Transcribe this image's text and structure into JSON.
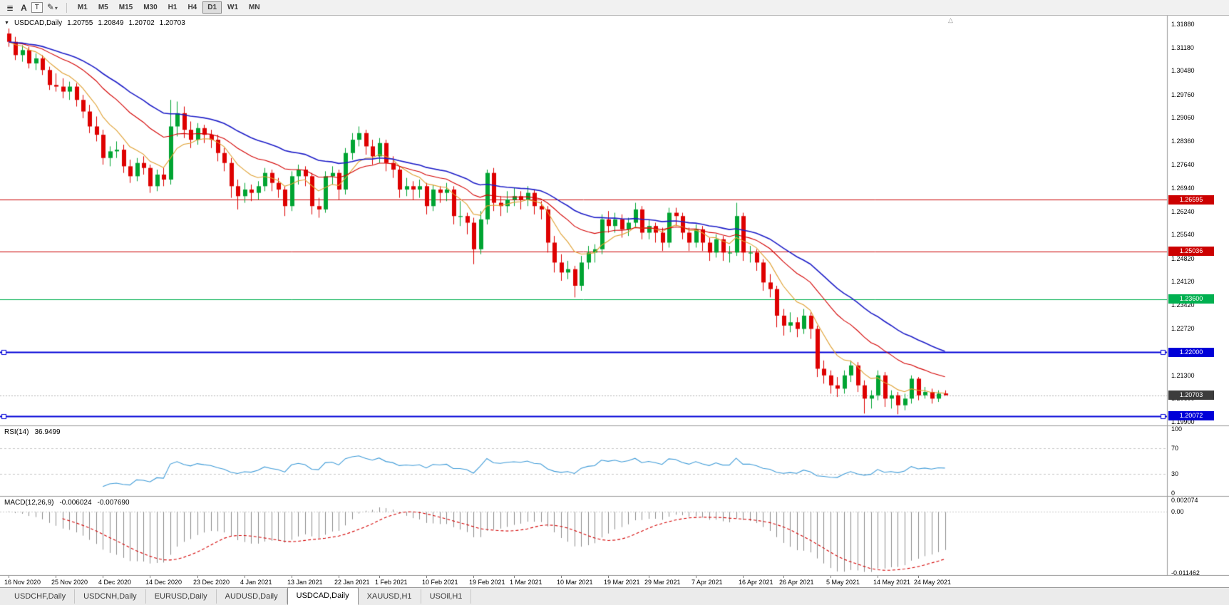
{
  "toolbar": {
    "menu_icon": "≣",
    "a_label": "A",
    "t_label": "T",
    "draw_icon": "✎",
    "chevron_icon": "▾",
    "timeframes": [
      "M1",
      "M5",
      "M15",
      "M30",
      "H1",
      "H4",
      "D1",
      "W1",
      "MN"
    ],
    "active_timeframe": "D1"
  },
  "chart_header": {
    "dropdown_icon": "▼",
    "symbol_label": "USDCAD,Daily",
    "open": "1.20755",
    "high": "1.20849",
    "low": "1.20702",
    "close": "1.20703"
  },
  "misc": {
    "shift_marker_icon": "△"
  },
  "chart_data": {
    "type": "candlestick",
    "symbol": "USDCAD",
    "timeframe": "Daily",
    "ylim": [
      1.199,
      1.3215
    ],
    "price_axis_labels": [
      "1.31880",
      "1.31180",
      "1.30480",
      "1.29760",
      "1.29060",
      "1.28360",
      "1.27640",
      "1.26940",
      "1.26240",
      "1.25540",
      "1.24820",
      "1.24120",
      "1.23420",
      "1.22720",
      "1.22000",
      "1.21300",
      "1.20600",
      "1.19900"
    ],
    "date_ticks": [
      {
        "i": 0,
        "label": "16 Nov 2020"
      },
      {
        "i": 7,
        "label": "25 Nov 2020"
      },
      {
        "i": 14,
        "label": "4 Dec 2020"
      },
      {
        "i": 21,
        "label": "14 Dec 2020"
      },
      {
        "i": 28,
        "label": "23 Dec 2020"
      },
      {
        "i": 35,
        "label": "4 Jan 2021"
      },
      {
        "i": 42,
        "label": "13 Jan 2021"
      },
      {
        "i": 49,
        "label": "22 Jan 2021"
      },
      {
        "i": 55,
        "label": "1 Feb 2021"
      },
      {
        "i": 62,
        "label": "10 Feb 2021"
      },
      {
        "i": 69,
        "label": "19 Feb 2021"
      },
      {
        "i": 75,
        "label": "1 Mar 2021"
      },
      {
        "i": 82,
        "label": "10 Mar 2021"
      },
      {
        "i": 89,
        "label": "19 Mar 2021"
      },
      {
        "i": 95,
        "label": "29 Mar 2021"
      },
      {
        "i": 102,
        "label": "7 Apr 2021"
      },
      {
        "i": 109,
        "label": "16 Apr 2021"
      },
      {
        "i": 115,
        "label": "26 Apr 2021"
      },
      {
        "i": 122,
        "label": "5 May 2021"
      },
      {
        "i": 129,
        "label": "14 May 2021"
      },
      {
        "i": 135,
        "label": "24 May 2021"
      }
    ],
    "candles": [
      [
        1.316,
        1.3175,
        1.312,
        1.3135
      ],
      [
        1.3135,
        1.315,
        1.308,
        1.3095
      ],
      [
        1.3095,
        1.3125,
        1.3075,
        1.311
      ],
      [
        1.311,
        1.312,
        1.3055,
        1.307
      ],
      [
        1.307,
        1.31,
        1.305,
        1.3085
      ],
      [
        1.3085,
        1.3095,
        1.3035,
        1.305
      ],
      [
        1.305,
        1.306,
        1.299,
        1.3005
      ],
      [
        1.3005,
        1.304,
        1.2985,
        1.3
      ],
      [
        1.3,
        1.3025,
        1.2965,
        1.2985
      ],
      [
        1.2985,
        1.3015,
        1.296,
        1.3
      ],
      [
        1.3,
        1.301,
        1.294,
        1.296
      ],
      [
        1.296,
        1.2975,
        1.2905,
        1.2925
      ],
      [
        1.2925,
        1.2945,
        1.286,
        1.288
      ],
      [
        1.288,
        1.291,
        1.2835,
        1.2855
      ],
      [
        1.2855,
        1.287,
        1.2765,
        1.2785
      ],
      [
        1.2785,
        1.282,
        1.276,
        1.2805
      ],
      [
        1.2805,
        1.2835,
        1.2785,
        1.281
      ],
      [
        1.281,
        1.2825,
        1.274,
        1.276
      ],
      [
        1.276,
        1.278,
        1.271,
        1.273
      ],
      [
        1.273,
        1.2785,
        1.2715,
        1.277
      ],
      [
        1.277,
        1.279,
        1.2735,
        1.2755
      ],
      [
        1.2755,
        1.2765,
        1.268,
        1.27
      ],
      [
        1.27,
        1.275,
        1.2685,
        1.2735
      ],
      [
        1.2735,
        1.2755,
        1.27,
        1.272
      ],
      [
        1.272,
        1.296,
        1.2705,
        1.288
      ],
      [
        1.288,
        1.2955,
        1.285,
        1.292
      ],
      [
        1.292,
        1.294,
        1.2845,
        1.287
      ],
      [
        1.287,
        1.2895,
        1.2815,
        1.284
      ],
      [
        1.284,
        1.289,
        1.2825,
        1.2875
      ],
      [
        1.2875,
        1.2885,
        1.283,
        1.2855
      ],
      [
        1.2855,
        1.287,
        1.2815,
        1.284
      ],
      [
        1.284,
        1.2855,
        1.2775,
        1.28
      ],
      [
        1.28,
        1.2815,
        1.2745,
        1.277
      ],
      [
        1.277,
        1.2785,
        1.2665,
        1.27
      ],
      [
        1.27,
        1.272,
        1.263,
        1.267
      ],
      [
        1.267,
        1.271,
        1.265,
        1.269
      ],
      [
        1.269,
        1.2705,
        1.2655,
        1.268
      ],
      [
        1.268,
        1.2715,
        1.266,
        1.27
      ],
      [
        1.27,
        1.2755,
        1.2685,
        1.274
      ],
      [
        1.274,
        1.275,
        1.2685,
        1.271
      ],
      [
        1.271,
        1.2725,
        1.2665,
        1.269
      ],
      [
        1.269,
        1.27,
        1.261,
        1.264
      ],
      [
        1.264,
        1.2745,
        1.2625,
        1.273
      ],
      [
        1.273,
        1.2765,
        1.2705,
        1.275
      ],
      [
        1.275,
        1.276,
        1.27,
        1.273
      ],
      [
        1.273,
        1.274,
        1.2615,
        1.264
      ],
      [
        1.264,
        1.2665,
        1.2605,
        1.263
      ],
      [
        1.263,
        1.2745,
        1.262,
        1.273
      ],
      [
        1.273,
        1.276,
        1.2705,
        1.274
      ],
      [
        1.274,
        1.275,
        1.266,
        1.269
      ],
      [
        1.269,
        1.2815,
        1.2675,
        1.28
      ],
      [
        1.28,
        1.286,
        1.278,
        1.284
      ],
      [
        1.284,
        1.288,
        1.282,
        1.286
      ],
      [
        1.286,
        1.287,
        1.2795,
        1.282
      ],
      [
        1.282,
        1.284,
        1.2765,
        1.279
      ],
      [
        1.279,
        1.2845,
        1.277,
        1.283
      ],
      [
        1.283,
        1.284,
        1.2745,
        1.277
      ],
      [
        1.277,
        1.279,
        1.2725,
        1.275
      ],
      [
        1.275,
        1.276,
        1.2665,
        1.269
      ],
      [
        1.269,
        1.2725,
        1.267,
        1.27
      ],
      [
        1.27,
        1.2715,
        1.266,
        1.269
      ],
      [
        1.269,
        1.272,
        1.2665,
        1.27
      ],
      [
        1.27,
        1.271,
        1.2615,
        1.264
      ],
      [
        1.264,
        1.2705,
        1.2625,
        1.269
      ],
      [
        1.269,
        1.27,
        1.265,
        1.268
      ],
      [
        1.268,
        1.271,
        1.2655,
        1.269
      ],
      [
        1.269,
        1.27,
        1.2585,
        1.261
      ],
      [
        1.261,
        1.2655,
        1.258,
        1.261
      ],
      [
        1.261,
        1.262,
        1.2555,
        1.259
      ],
      [
        1.259,
        1.2605,
        1.2465,
        1.251
      ],
      [
        1.251,
        1.2625,
        1.2495,
        1.26
      ],
      [
        1.26,
        1.275,
        1.2585,
        1.274
      ],
      [
        1.274,
        1.2755,
        1.2625,
        1.265
      ],
      [
        1.265,
        1.267,
        1.261,
        1.264
      ],
      [
        1.264,
        1.2685,
        1.262,
        1.266
      ],
      [
        1.266,
        1.2695,
        1.264,
        1.267
      ],
      [
        1.267,
        1.2685,
        1.263,
        1.266
      ],
      [
        1.266,
        1.27,
        1.264,
        1.268
      ],
      [
        1.268,
        1.269,
        1.2615,
        1.264
      ],
      [
        1.264,
        1.2655,
        1.26,
        1.263
      ],
      [
        1.263,
        1.264,
        1.25,
        1.253
      ],
      [
        1.253,
        1.255,
        1.244,
        1.247
      ],
      [
        1.247,
        1.2495,
        1.2415,
        1.244
      ],
      [
        1.244,
        1.2475,
        1.242,
        1.245
      ],
      [
        1.245,
        1.246,
        1.2365,
        1.24
      ],
      [
        1.24,
        1.249,
        1.2385,
        1.247
      ],
      [
        1.247,
        1.252,
        1.245,
        1.25
      ],
      [
        1.25,
        1.2525,
        1.247,
        1.251
      ],
      [
        1.251,
        1.2615,
        1.2495,
        1.26
      ],
      [
        1.26,
        1.2625,
        1.256,
        1.258
      ],
      [
        1.258,
        1.262,
        1.256,
        1.26
      ],
      [
        1.26,
        1.2615,
        1.2545,
        1.257
      ],
      [
        1.257,
        1.2605,
        1.255,
        1.259
      ],
      [
        1.259,
        1.265,
        1.2575,
        1.263
      ],
      [
        1.263,
        1.264,
        1.254,
        1.256
      ],
      [
        1.256,
        1.26,
        1.254,
        1.258
      ],
      [
        1.258,
        1.259,
        1.253,
        1.256
      ],
      [
        1.256,
        1.2575,
        1.2505,
        1.253
      ],
      [
        1.253,
        1.2635,
        1.2515,
        1.262
      ],
      [
        1.262,
        1.2635,
        1.258,
        1.261
      ],
      [
        1.261,
        1.262,
        1.254,
        1.256
      ],
      [
        1.256,
        1.2575,
        1.2505,
        1.253
      ],
      [
        1.253,
        1.2585,
        1.2515,
        1.257
      ],
      [
        1.257,
        1.258,
        1.2505,
        1.253
      ],
      [
        1.253,
        1.2545,
        1.2475,
        1.25
      ],
      [
        1.25,
        1.2555,
        1.2485,
        1.254
      ],
      [
        1.254,
        1.255,
        1.2475,
        1.25
      ],
      [
        1.25,
        1.252,
        1.247,
        1.25
      ],
      [
        1.25,
        1.265,
        1.249,
        1.261
      ],
      [
        1.261,
        1.262,
        1.2475,
        1.25
      ],
      [
        1.25,
        1.252,
        1.247,
        1.25
      ],
      [
        1.25,
        1.251,
        1.2445,
        1.247
      ],
      [
        1.247,
        1.248,
        1.2385,
        1.241
      ],
      [
        1.241,
        1.2435,
        1.2365,
        1.239
      ],
      [
        1.239,
        1.24,
        1.2275,
        1.231
      ],
      [
        1.231,
        1.233,
        1.225,
        1.228
      ],
      [
        1.228,
        1.232,
        1.226,
        1.229
      ],
      [
        1.229,
        1.2305,
        1.2245,
        1.227
      ],
      [
        1.227,
        1.233,
        1.2255,
        1.231
      ],
      [
        1.231,
        1.232,
        1.224,
        1.227
      ],
      [
        1.227,
        1.228,
        1.2125,
        1.215
      ],
      [
        1.215,
        1.2175,
        1.2105,
        1.213
      ],
      [
        1.213,
        1.2145,
        1.2075,
        1.21
      ],
      [
        1.21,
        1.2125,
        1.2065,
        1.209
      ],
      [
        1.209,
        1.2145,
        1.2075,
        1.213
      ],
      [
        1.213,
        1.2175,
        1.211,
        1.216
      ],
      [
        1.216,
        1.217,
        1.208,
        1.21
      ],
      [
        1.21,
        1.2115,
        1.2015,
        1.206
      ],
      [
        1.206,
        1.2085,
        1.203,
        1.207
      ],
      [
        1.207,
        1.2145,
        1.2055,
        1.213
      ],
      [
        1.213,
        1.214,
        1.2035,
        1.206
      ],
      [
        1.206,
        1.2085,
        1.203,
        1.207
      ],
      [
        1.207,
        1.208,
        1.2013,
        1.204
      ],
      [
        1.204,
        1.2075,
        1.2025,
        1.206
      ],
      [
        1.206,
        1.213,
        1.2045,
        1.212
      ],
      [
        1.212,
        1.2125,
        1.2055,
        1.207
      ],
      [
        1.207,
        1.2095,
        1.206,
        1.208
      ],
      [
        1.208,
        1.209,
        1.2045,
        1.206
      ],
      [
        1.206,
        1.2085,
        1.205,
        1.2075
      ],
      [
        1.20755,
        1.20849,
        1.20702,
        1.20703
      ]
    ],
    "overlays": [
      {
        "name": "fast-ma",
        "type": "ema",
        "period": 8,
        "color": "#E0A030",
        "width": 1.1
      },
      {
        "name": "mid-ma",
        "type": "ema",
        "period": 20,
        "color": "#D40000",
        "width": 1.1
      },
      {
        "name": "slow-ma",
        "type": "ema",
        "period": 34,
        "color": "#1E1EC8",
        "width": 1.6
      }
    ],
    "hlines": [
      {
        "value": 1.26595,
        "label": "1.26595",
        "color": "#CC0000",
        "width": 1,
        "selected": false
      },
      {
        "value": 1.25036,
        "label": "1.25036",
        "color": "#CC0000",
        "width": 1,
        "selected": false
      },
      {
        "value": 1.236,
        "label": "1.23600",
        "color": "#00B050",
        "width": 1,
        "selected": false
      },
      {
        "value": 1.22,
        "label": "1.22000",
        "color": "#0000D8",
        "width": 2,
        "selected": true
      },
      {
        "value": 1.20072,
        "label": "1.20072",
        "color": "#0000D8",
        "width": 2,
        "selected": true
      }
    ],
    "current_price": {
      "value": 1.20703,
      "label": "1.20703",
      "color": "#3C3C3C"
    },
    "rsi_panel": {
      "title": "RSI(14)",
      "period": 14,
      "value": "36.9499",
      "color": "#3E9BD8",
      "levels": [
        70,
        30
      ],
      "axis_labels": [
        {
          "v": 100,
          "label": "100"
        },
        {
          "v": 70,
          "label": "70"
        },
        {
          "v": 30,
          "label": "30"
        },
        {
          "v": 0,
          "label": "0"
        }
      ]
    },
    "macd_panel": {
      "title": "MACD(12,26,9)",
      "fast": 12,
      "slow": 26,
      "signal": 9,
      "macd_value": "-0.006024",
      "signal_value": "-0.007690",
      "hist_color": "#8C8C8C",
      "signal_color": "#D40000",
      "scale_max": 0.002074,
      "scale_min": -0.011462,
      "axis_labels": [
        {
          "v": 0.002074,
          "label": "0.002074"
        },
        {
          "v": 0,
          "label": "0.00"
        },
        {
          "v": -0.011462,
          "label": "-0.011462"
        }
      ]
    },
    "colors": {
      "up": "#00A432",
      "down": "#DE0000",
      "background": "#FFFFFF"
    }
  },
  "tabs": {
    "labels": [
      "USDCHF,Daily",
      "USDCNH,Daily",
      "EURUSD,Daily",
      "AUDUSD,Daily",
      "USDCAD,Daily",
      "XAUUSD,H1",
      "USOil,H1"
    ],
    "active": "USDCAD,Daily"
  }
}
